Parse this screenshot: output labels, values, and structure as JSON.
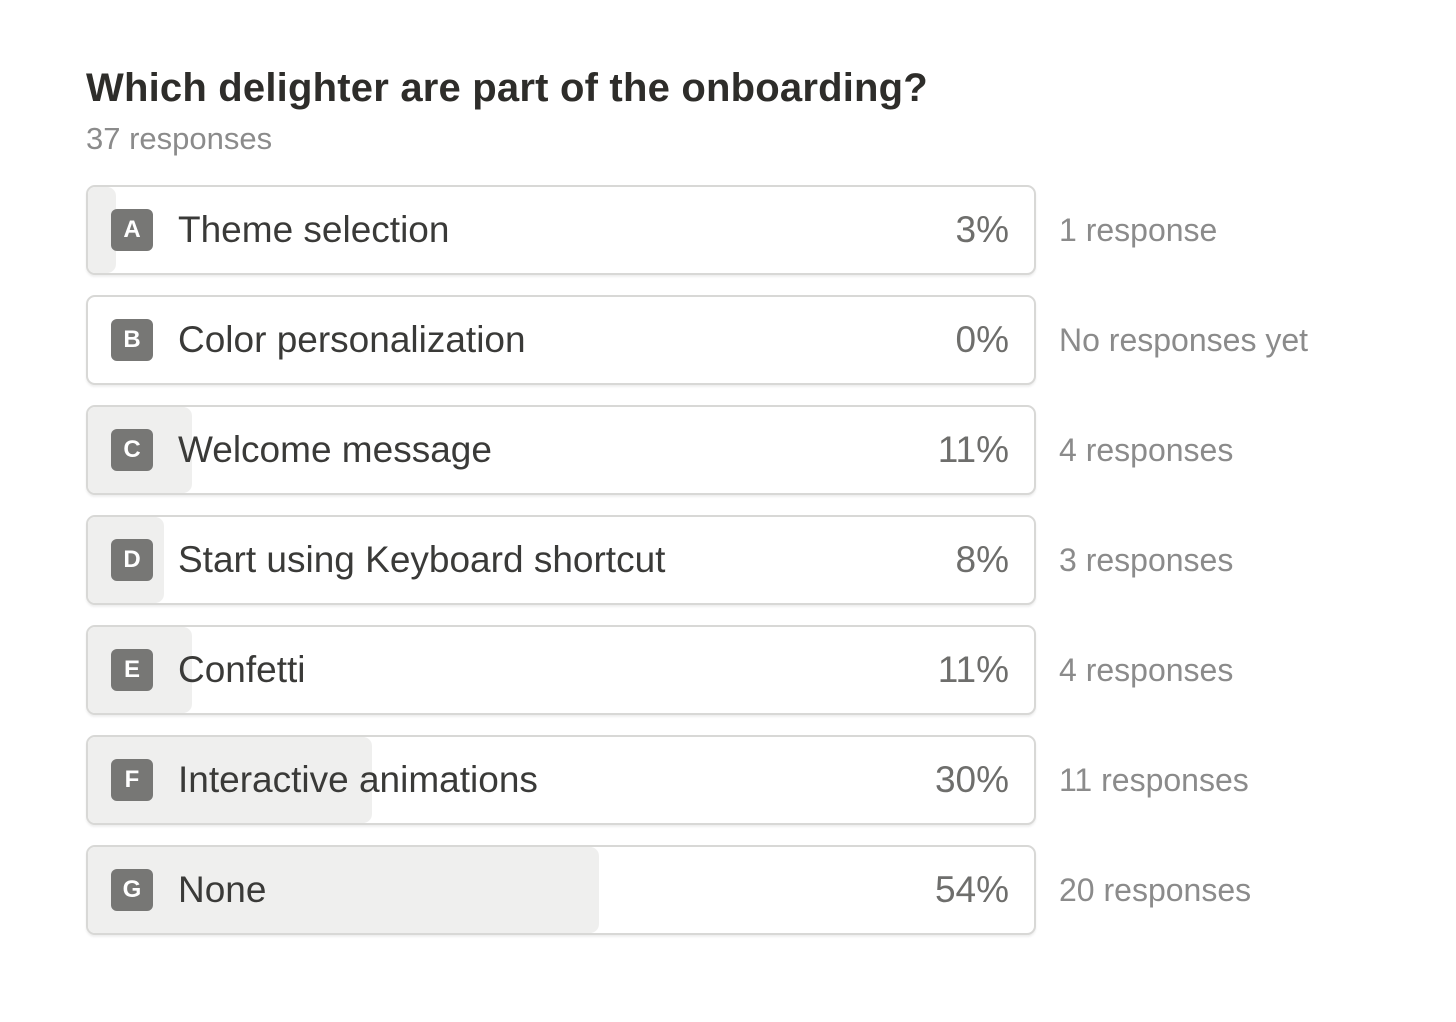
{
  "survey": {
    "title": "Which delighter are part of the onboarding?",
    "subtitle": "37 responses",
    "options": [
      {
        "letter": "A",
        "label": "Theme selection",
        "percent_label": "3%",
        "percent": 3,
        "count_label": "1 response"
      },
      {
        "letter": "B",
        "label": "Color personalization",
        "percent_label": "0%",
        "percent": 0,
        "count_label": "No responses yet"
      },
      {
        "letter": "C",
        "label": "Welcome message",
        "percent_label": "11%",
        "percent": 11,
        "count_label": "4 responses"
      },
      {
        "letter": "D",
        "label": "Start using Keyboard shortcut",
        "percent_label": "8%",
        "percent": 8,
        "count_label": "3 responses"
      },
      {
        "letter": "E",
        "label": "Confetti",
        "percent_label": "11%",
        "percent": 11,
        "count_label": "4 responses"
      },
      {
        "letter": "F",
        "label": "Interactive animations",
        "percent_label": "30%",
        "percent": 30,
        "count_label": "11 responses"
      },
      {
        "letter": "G",
        "label": "None",
        "percent_label": "54%",
        "percent": 54,
        "count_label": "20 responses"
      }
    ]
  },
  "colors": {
    "title": "#2e2d2a",
    "muted_text": "#8b8b8b",
    "bar_fill": "#efefee",
    "letter_badge": "#777775",
    "card_border": "#d8d8d6"
  }
}
